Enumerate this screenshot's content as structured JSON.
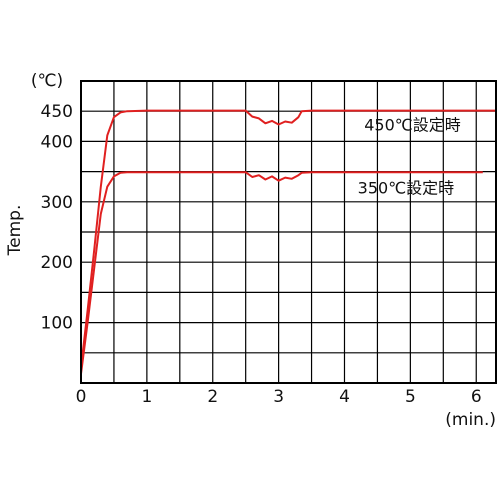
{
  "chart_data": {
    "type": "line",
    "title": "",
    "xlabel": "(min.)",
    "ylabel": "Temp.",
    "yunit": "(℃)",
    "xlim": [
      0,
      6.3
    ],
    "ylim": [
      0,
      500
    ],
    "x_ticks": [
      0,
      1,
      2,
      3,
      4,
      5,
      6
    ],
    "y_ticks": [
      100,
      200,
      300,
      400,
      450
    ],
    "grid": true,
    "series": [
      {
        "name": "450℃設定時",
        "color": "#e02020",
        "x": [
          0,
          0.1,
          0.2,
          0.3,
          0.4,
          0.5,
          0.6,
          0.7,
          1.0,
          2.0,
          2.5,
          2.6,
          2.7,
          2.8,
          2.9,
          3.0,
          3.1,
          3.2,
          3.3,
          3.35,
          3.5,
          4.0,
          5.0,
          6.0,
          6.3
        ],
        "y": [
          25,
          120,
          220,
          325,
          410,
          440,
          448,
          450,
          451,
          451,
          451,
          441,
          438,
          430,
          434,
          428,
          433,
          431,
          440,
          450,
          451,
          451,
          451,
          451,
          451
        ]
      },
      {
        "name": "350℃設定時",
        "color": "#e02020",
        "x": [
          0,
          0.1,
          0.2,
          0.3,
          0.4,
          0.5,
          0.6,
          0.7,
          1.0,
          2.0,
          2.5,
          2.6,
          2.7,
          2.8,
          2.9,
          3.0,
          3.1,
          3.2,
          3.3,
          3.35,
          3.5,
          4.0,
          5.0,
          6.0,
          6.1
        ],
        "y": [
          15,
          100,
          190,
          280,
          325,
          342,
          348,
          349,
          349,
          349,
          349,
          341,
          344,
          337,
          342,
          335,
          340,
          338,
          344,
          348,
          349,
          349,
          349,
          349,
          349
        ]
      }
    ],
    "annotations": [
      {
        "text": "450℃設定時",
        "x": 4.3,
        "y": 418
      },
      {
        "text": "350℃設定時",
        "x": 4.2,
        "y": 314
      }
    ]
  }
}
